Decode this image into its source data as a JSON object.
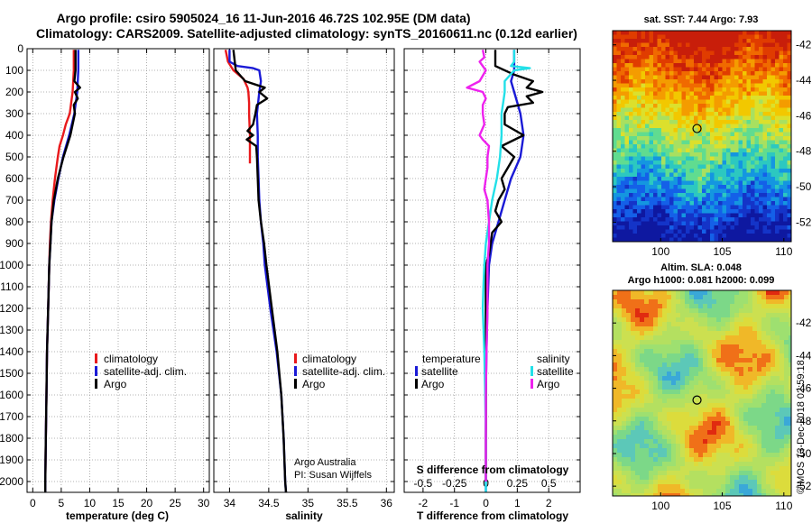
{
  "header": {
    "line1": "Argo profile: csiro 5905024_16 11-Jun-2016 46.72S 102.95E (DM data)",
    "line2": "Climatology: CARS2009. Satellite-adjusted climatology: synTS_20160611.nc (0.12d earlier)"
  },
  "colors": {
    "climatology": "#e8191c",
    "satellite_adj": "#1a1ad6",
    "argo": "#000000",
    "salinity_satellite": "#22e0e8",
    "salinity_argo": "#ee22ee",
    "map_marker": "#000000"
  },
  "chart_data": [
    {
      "type": "line",
      "id": "temperature",
      "xlabel": "temperature (deg C)",
      "ylabel": "",
      "xlim": [
        -1,
        31
      ],
      "ylim": [
        2050,
        0
      ],
      "xticks": [
        "0",
        "5",
        "10",
        "15",
        "20",
        "25",
        "30"
      ],
      "yticks": [
        "0",
        "100",
        "200",
        "300",
        "400",
        "500",
        "600",
        "700",
        "800",
        "900",
        "1000",
        "1100",
        "1200",
        "1300",
        "1400",
        "1500",
        "1600",
        "1700",
        "1800",
        "1900",
        "2000"
      ],
      "grid": true,
      "legend": {
        "position": "lower-middle",
        "entries": [
          "climatology",
          "satellite-adj. clim.",
          "Argo"
        ]
      },
      "series": [
        {
          "name": "climatology",
          "color_key": "climatology",
          "depth": [
            5,
            100,
            200,
            300,
            350,
            400,
            450,
            500,
            600,
            700,
            800,
            900,
            1000,
            1200,
            1400,
            1600,
            1800,
            2000,
            2050
          ],
          "values": [
            7.2,
            7.2,
            7.0,
            6.5,
            5.8,
            5.3,
            4.7,
            4.4,
            3.9,
            3.5,
            3.2,
            3.0,
            2.9,
            2.7,
            2.5,
            2.4,
            2.3,
            2.2,
            2.2
          ]
        },
        {
          "name": "satellite-adj. clim.",
          "color_key": "satellite_adj",
          "depth": [
            5,
            100,
            200,
            300,
            400,
            500,
            600,
            700,
            800,
            900,
            1000,
            1200,
            1400,
            1600,
            1800,
            2000,
            2050
          ],
          "values": [
            8.0,
            8.0,
            7.8,
            7.3,
            6.4,
            5.3,
            4.5,
            3.8,
            3.3,
            3.1,
            2.9,
            2.7,
            2.5,
            2.4,
            2.3,
            2.2,
            2.2
          ]
        },
        {
          "name": "Argo",
          "color_key": "argo",
          "depth": [
            5,
            100,
            150,
            180,
            200,
            230,
            260,
            300,
            350,
            400,
            450,
            500,
            550,
            600,
            700,
            800,
            900,
            1000,
            1200,
            1400,
            1600,
            1800,
            2000,
            2050
          ],
          "values": [
            7.5,
            7.5,
            7.3,
            8.3,
            7.4,
            7.9,
            7.2,
            7.4,
            7.0,
            6.6,
            6.0,
            5.4,
            4.9,
            4.4,
            3.7,
            3.3,
            3.1,
            2.9,
            2.7,
            2.5,
            2.4,
            2.3,
            2.2,
            2.2
          ]
        }
      ]
    },
    {
      "type": "line",
      "id": "salinity",
      "xlabel": "salinity",
      "ylabel": "",
      "xlim": [
        33.8,
        36.1
      ],
      "ylim": [
        2050,
        0
      ],
      "xticks": [
        "34",
        "34.5",
        "35",
        "35.5",
        "36"
      ],
      "grid": true,
      "legend": {
        "position": "lower-middle",
        "entries": [
          "climatology",
          "satellite-adj. clim.",
          "Argo"
        ]
      },
      "annotation": [
        "Argo Australia",
        "PI: Susan Wijffels"
      ],
      "series": [
        {
          "name": "climatology",
          "color_key": "climatology",
          "depth": [
            5,
            60,
            100,
            140,
            180,
            200,
            250,
            300,
            400,
            500,
            530
          ],
          "values": [
            33.95,
            33.98,
            34.05,
            34.18,
            34.23,
            34.24,
            34.25,
            34.25,
            34.26,
            34.26,
            34.26
          ]
        },
        {
          "name": "satellite-adj. clim.",
          "color_key": "satellite_adj",
          "depth": [
            5,
            60,
            80,
            90,
            100,
            150,
            200,
            300,
            400,
            500,
            600,
            700,
            800,
            900,
            1000,
            1200,
            1400,
            1600,
            1800,
            2000,
            2050
          ],
          "values": [
            34.0,
            34.0,
            34.1,
            34.3,
            34.38,
            34.4,
            34.38,
            34.35,
            34.36,
            34.36,
            34.37,
            34.38,
            34.4,
            34.43,
            34.45,
            34.52,
            34.6,
            34.66,
            34.69,
            34.71,
            34.72
          ]
        },
        {
          "name": "Argo",
          "color_key": "argo",
          "depth": [
            5,
            100,
            150,
            180,
            200,
            230,
            260,
            300,
            350,
            380,
            400,
            420,
            450,
            500,
            600,
            700,
            800,
            900,
            1000,
            1200,
            1400,
            1600,
            1800,
            2000,
            2050
          ],
          "values": [
            34.05,
            34.08,
            34.2,
            34.45,
            34.38,
            34.48,
            34.35,
            34.33,
            34.3,
            34.23,
            34.3,
            34.22,
            34.34,
            34.35,
            34.36,
            34.37,
            34.4,
            34.44,
            34.47,
            34.54,
            34.61,
            34.66,
            34.69,
            34.71,
            34.72
          ]
        }
      ]
    },
    {
      "type": "line",
      "id": "difference",
      "xlabel": "T difference from climatology",
      "xlabel_top": "S difference from climatology",
      "ylabel": "",
      "xlim": [
        -2.6,
        3.0
      ],
      "ylim": [
        2050,
        0
      ],
      "xticks": [
        "-2",
        "-1",
        "0",
        "1",
        "2"
      ],
      "xticks_secondary": [
        "-0.5",
        "-0.25",
        "0",
        "0.25",
        "0.5"
      ],
      "grid": true,
      "legend": {
        "temperature_title": "temperature",
        "salinity_title": "salinity",
        "entries": [
          "satellite",
          "Argo",
          "satellite",
          "Argo"
        ]
      },
      "series": [
        {
          "name": "satellite",
          "group": "temperature",
          "color_key": "satellite_adj",
          "depth": [
            5,
            100,
            150,
            200,
            250,
            300,
            400,
            500,
            600,
            700,
            800,
            900,
            1000,
            1200,
            1400,
            1600,
            1800,
            2000,
            2050
          ],
          "values": [
            0.9,
            0.9,
            0.8,
            0.9,
            1.0,
            1.1,
            1.2,
            1.1,
            0.8,
            0.6,
            0.4,
            0.2,
            0.1,
            0.05,
            0.02,
            0.0,
            0.0,
            0.0,
            0.0
          ]
        },
        {
          "name": "Argo",
          "group": "temperature",
          "color_key": "argo",
          "depth": [
            5,
            80,
            120,
            150,
            180,
            200,
            220,
            250,
            270,
            300,
            350,
            400,
            450,
            500,
            550,
            600,
            650,
            700,
            750,
            800,
            850,
            900,
            950,
            1000,
            1200,
            1400,
            1600,
            1800,
            2000
          ],
          "values": [
            0.3,
            0.3,
            0.9,
            1.5,
            1.3,
            1.8,
            1.3,
            1.5,
            0.7,
            0.6,
            0.6,
            1.2,
            0.5,
            0.9,
            0.7,
            0.5,
            0.6,
            0.4,
            0.3,
            0.5,
            0.2,
            0.15,
            0.1,
            0.0,
            0.0,
            0.0,
            0.0,
            0.0,
            0.0
          ]
        },
        {
          "name": "satellite",
          "group": "salinity",
          "color_key": "salinity_satellite",
          "depth": [
            5,
            60,
            80,
            90,
            100,
            150,
            200,
            250,
            300,
            400,
            500,
            600,
            700,
            800,
            900,
            1000,
            1100,
            1200,
            1400,
            1600,
            1800,
            2000,
            2050
          ],
          "values": [
            0.9,
            0.9,
            0.8,
            1.4,
            0.9,
            0.6,
            0.6,
            0.55,
            0.5,
            0.5,
            0.45,
            0.35,
            0.2,
            0.1,
            0.0,
            -0.05,
            -0.08,
            -0.1,
            -0.05,
            -0.02,
            0.0,
            0.0,
            0.0
          ]
        },
        {
          "name": "Argo",
          "group": "salinity",
          "color_key": "salinity_argo",
          "depth": [
            5,
            40,
            60,
            100,
            150,
            180,
            200,
            230,
            260,
            300,
            350,
            400,
            420,
            450,
            500,
            550,
            600,
            650,
            700,
            800,
            900,
            1000,
            1200,
            1400,
            1600,
            1800,
            2000
          ],
          "values": [
            -0.1,
            -0.05,
            -0.2,
            0.0,
            -0.2,
            -0.6,
            -0.1,
            0.0,
            -0.1,
            -0.1,
            -0.05,
            -0.2,
            -0.1,
            0.1,
            0.05,
            0.05,
            0.0,
            -0.05,
            0.05,
            0.1,
            0.1,
            0.05,
            0.05,
            0.02,
            0.0,
            0.0,
            0.0
          ]
        }
      ]
    },
    {
      "type": "heatmap",
      "id": "sst-map",
      "title": "sat. SST: 7.44 Argo: 7.93",
      "xticks": [
        "100",
        "105",
        "110"
      ],
      "yticks": [
        "-42",
        "-44",
        "-46",
        "-48",
        "-50",
        "-52"
      ],
      "xlim": [
        96.1,
        110.6
      ],
      "ylim": [
        -53.1,
        -41.2
      ],
      "marker": {
        "lon": 102.95,
        "lat": -46.72
      }
    },
    {
      "type": "heatmap",
      "id": "sla-map",
      "title": "Altim. SLA: 0.048",
      "subtitle": "Argo h1000: 0.081 h2000: 0.099",
      "xticks": [
        "100",
        "105",
        "110"
      ],
      "yticks": [
        "-42",
        "-44",
        "-46",
        "-48",
        "-50",
        "-52"
      ],
      "xlim": [
        96.1,
        110.6
      ],
      "ylim": [
        -52.6,
        -40.0
      ],
      "marker": {
        "lon": 102.95,
        "lat": -46.72
      }
    }
  ],
  "footer": {
    "credit": "©IMOS 13-Dec-2018 02:59:18"
  }
}
